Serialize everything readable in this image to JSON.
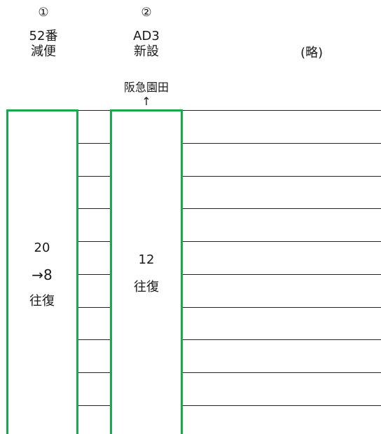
{
  "columns": [
    {
      "marker": "①",
      "line1": "52番",
      "line2": "減便",
      "count_lines": [
        "20",
        "→8",
        "往復"
      ]
    },
    {
      "marker": "②",
      "line1": "AD3",
      "line2": "新設",
      "destination": "阪急園田",
      "direction_arrow": "↑",
      "count_lines": [
        "12",
        "往復"
      ]
    }
  ],
  "omitted_label": "(略)",
  "colors": {
    "box_border": "#19a84a",
    "row_line": "#222222"
  }
}
